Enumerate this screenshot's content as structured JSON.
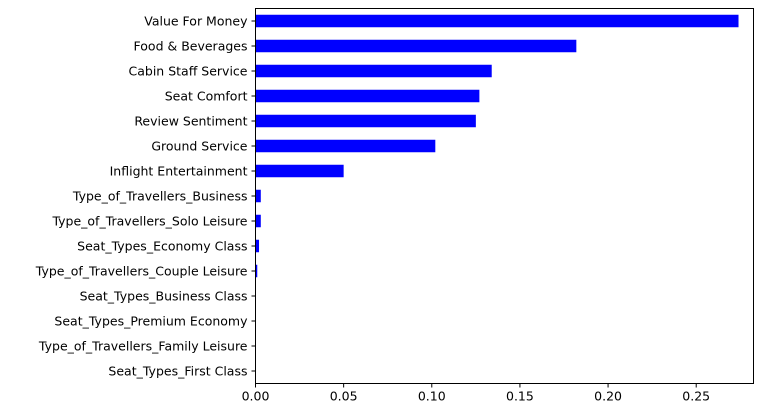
{
  "chart_data": {
    "type": "bar",
    "orientation": "horizontal",
    "title": "",
    "xlabel": "",
    "ylabel": "",
    "xlim": [
      0,
      0.2825
    ],
    "grid": false,
    "bar_color": "#0000ff",
    "xticks": [
      {
        "value": 0.0,
        "label": "0.00"
      },
      {
        "value": 0.05,
        "label": "0.05"
      },
      {
        "value": 0.1,
        "label": "0.10"
      },
      {
        "value": 0.15,
        "label": "0.15"
      },
      {
        "value": 0.2,
        "label": "0.20"
      },
      {
        "value": 0.25,
        "label": "0.25"
      }
    ],
    "categories": [
      "Value For Money",
      "Food & Beverages",
      "Cabin Staff Service",
      "Seat Comfort",
      "Review Sentiment",
      "Ground Service",
      "Inflight Entertainment",
      "Type_of_Travellers_Business",
      "Type_of_Travellers_Solo Leisure",
      "Seat_Types_Economy Class",
      "Type_of_Travellers_Couple Leisure",
      "Seat_Types_Business Class",
      "Seat_Types_Premium Economy",
      "Type_of_Travellers_Family Leisure",
      "Seat_Types_First Class"
    ],
    "values": [
      0.274,
      0.182,
      0.134,
      0.127,
      0.125,
      0.102,
      0.05,
      0.003,
      0.003,
      0.002,
      0.001,
      0.0,
      0.0,
      0.0,
      0.0
    ]
  }
}
